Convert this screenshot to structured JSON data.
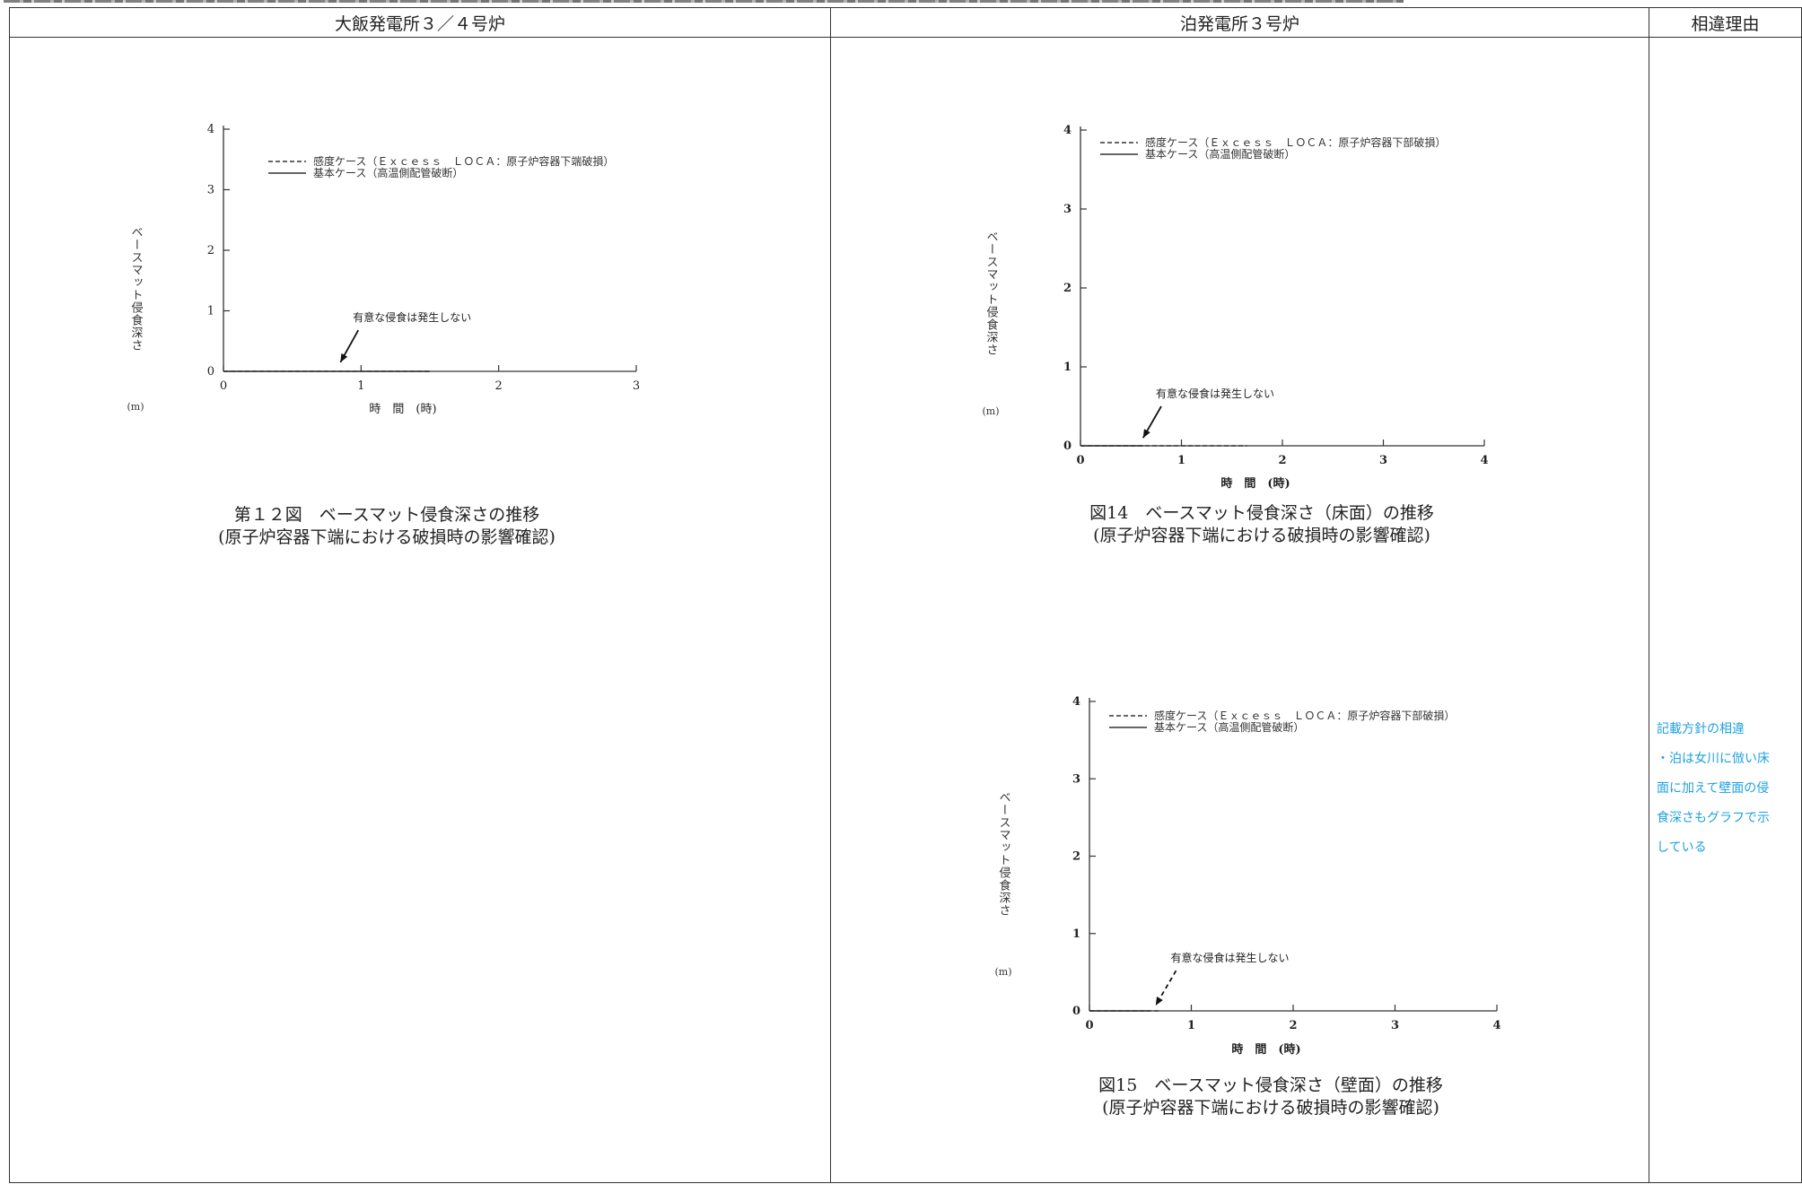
{
  "table_header": {
    "left": "大飯発電所３／４号炉",
    "middle": "泊発電所３号炉",
    "right": "相違理由"
  },
  "chart_data": [
    {
      "type": "line",
      "xlabel": "時　間　(時)",
      "ylabel": "ベースマット侵食深さ",
      "ylabel_unit": "(m)",
      "xlim": [
        0,
        3
      ],
      "ylim": [
        0,
        4
      ],
      "xticks": [
        "0",
        "1",
        "2",
        "3"
      ],
      "yticks": [
        "0",
        "1",
        "2",
        "3",
        "4"
      ],
      "legend_position": "top-left",
      "series": [
        {
          "name": "感度ケース（Ｅｘｃｅｓｓ　ＬＯＣＡ：原子炉容器下端破損）",
          "style": "dashed",
          "x": [
            0,
            1.5
          ],
          "y": [
            0,
            0
          ]
        },
        {
          "name": "基本ケース（高温側配管破断）",
          "style": "solid",
          "x": [
            0,
            1.5
          ],
          "y": [
            0,
            0
          ]
        }
      ],
      "annotation": {
        "text": "有意な侵食は発生しない",
        "arrow_to": [
          0.85,
          0.15
        ],
        "arrow_from": [
          0.98,
          0.68
        ]
      },
      "caption": [
        "第１２図　ベースマット侵食深さの推移",
        "(原子炉容器下端における破損時の影響確認)"
      ]
    },
    {
      "type": "line",
      "xlabel": "時　間　(時)",
      "ylabel": "ベースマット侵食深さ",
      "ylabel_unit": "(m)",
      "xlim": [
        0,
        4
      ],
      "ylim": [
        0,
        4
      ],
      "xticks": [
        "0",
        "1",
        "2",
        "3",
        "4"
      ],
      "yticks": [
        "0",
        "1",
        "2",
        "3",
        "4"
      ],
      "legend_position": "top-left",
      "series": [
        {
          "name": "感度ケース（Ｅｘｃｅｓｓ　ＬＯＣＡ：原子炉容器下部破損）",
          "style": "dashed",
          "x": [
            0,
            1.65
          ],
          "y": [
            0,
            0
          ]
        },
        {
          "name": "基本ケース（高温側配管破断）",
          "style": "solid",
          "x": [
            0,
            0.62
          ],
          "y": [
            0,
            0
          ]
        }
      ],
      "annotation": {
        "text": "有意な侵食は発生しない",
        "arrow_to": [
          0.62,
          0.1
        ],
        "arrow_from": [
          0.8,
          0.5
        ]
      },
      "caption": [
        "図14　ベースマット侵食深さ（床面）の推移",
        "(原子炉容器下端における破損時の影響確認)"
      ]
    },
    {
      "type": "line",
      "xlabel": "時　間　(時)",
      "ylabel": "ベースマット侵食深さ",
      "ylabel_unit": "(m)",
      "xlim": [
        0,
        4
      ],
      "ylim": [
        0,
        4
      ],
      "xticks": [
        "0",
        "1",
        "2",
        "3",
        "4"
      ],
      "yticks": [
        "0",
        "1",
        "2",
        "3",
        "4"
      ],
      "legend_position": "top-left",
      "series": [
        {
          "name": "感度ケース（Ｅｘｃｅｓｓ　ＬＯＣＡ：原子炉容器下部破損）",
          "style": "dashed",
          "x": [
            0,
            0.7
          ],
          "y": [
            0,
            0
          ]
        },
        {
          "name": "基本ケース（高温側配管破断）",
          "style": "solid",
          "x": [
            0,
            0.6
          ],
          "y": [
            0,
            0
          ]
        }
      ],
      "annotation": {
        "text": "有意な侵食は発生しない",
        "arrow_to": [
          0.65,
          0.07
        ],
        "arrow_from": [
          0.85,
          0.52
        ],
        "arrow_style": "dashed"
      },
      "caption": [
        "図15　ベースマット侵食深さ（壁面）の推移",
        "(原子炉容器下端における破損時の影響確認)"
      ]
    }
  ],
  "note": {
    "lines": [
      "記載方針の相違",
      "・泊は女川に倣い床",
      "面に加えて壁面の侵",
      "食深さもグラフで示",
      "している"
    ],
    "color": "#1ea0df"
  }
}
